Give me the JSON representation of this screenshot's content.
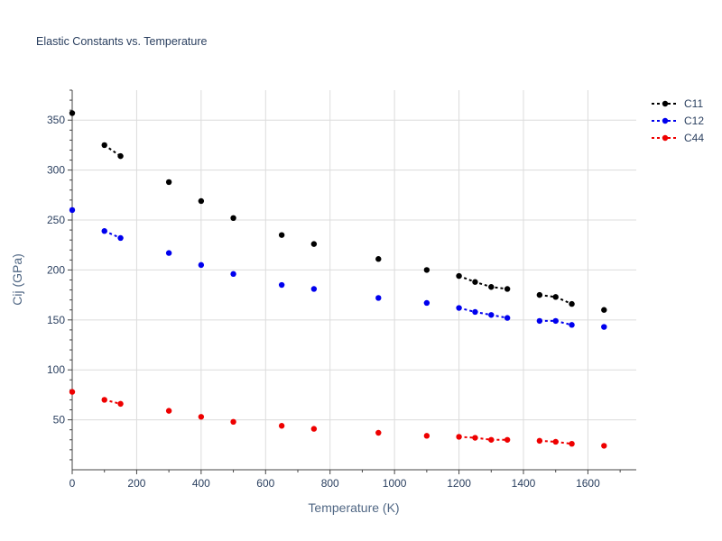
{
  "chart_data": {
    "type": "scatter",
    "title": "Elastic Constants vs. Temperature",
    "xlabel": "Temperature (K)",
    "ylabel": "Cij (GPa)",
    "xlim": [
      0,
      1750
    ],
    "ylim": [
      0,
      380
    ],
    "xticks": [
      0,
      200,
      400,
      600,
      800,
      1000,
      1200,
      1400,
      1600
    ],
    "yticks": [
      50,
      100,
      150,
      200,
      250,
      300,
      350
    ],
    "grid": true,
    "legend_position": "top-right",
    "series": [
      {
        "name": "C11",
        "color": "#000000",
        "x": [
          0,
          100,
          150,
          300,
          400,
          500,
          650,
          750,
          950,
          1100,
          1200,
          1250,
          1300,
          1350,
          1450,
          1500,
          1550,
          1650
        ],
        "y": [
          357,
          325,
          314,
          288,
          269,
          252,
          235,
          226,
          211,
          200,
          194,
          188,
          183,
          181,
          175,
          173,
          166,
          160
        ],
        "segments": [
          [
            1,
            2
          ],
          [
            10,
            13
          ],
          [
            14,
            16
          ]
        ]
      },
      {
        "name": "C12",
        "color": "#0000ee",
        "x": [
          0,
          100,
          150,
          300,
          400,
          500,
          650,
          750,
          950,
          1100,
          1200,
          1250,
          1300,
          1350,
          1450,
          1500,
          1550,
          1650
        ],
        "y": [
          260,
          239,
          232,
          217,
          205,
          196,
          185,
          181,
          172,
          167,
          162,
          158,
          155,
          152,
          149,
          149,
          145,
          143
        ],
        "segments": [
          [
            1,
            2
          ],
          [
            10,
            13
          ],
          [
            14,
            16
          ]
        ]
      },
      {
        "name": "C44",
        "color": "#ee0000",
        "x": [
          0,
          100,
          150,
          300,
          400,
          500,
          650,
          750,
          950,
          1100,
          1200,
          1250,
          1300,
          1350,
          1450,
          1500,
          1550,
          1650
        ],
        "y": [
          78,
          70,
          66,
          59,
          53,
          48,
          44,
          41,
          37,
          34,
          33,
          32,
          30,
          30,
          29,
          28,
          26,
          24
        ],
        "segments": [
          [
            1,
            2
          ],
          [
            10,
            13
          ],
          [
            14,
            16
          ]
        ]
      }
    ]
  }
}
